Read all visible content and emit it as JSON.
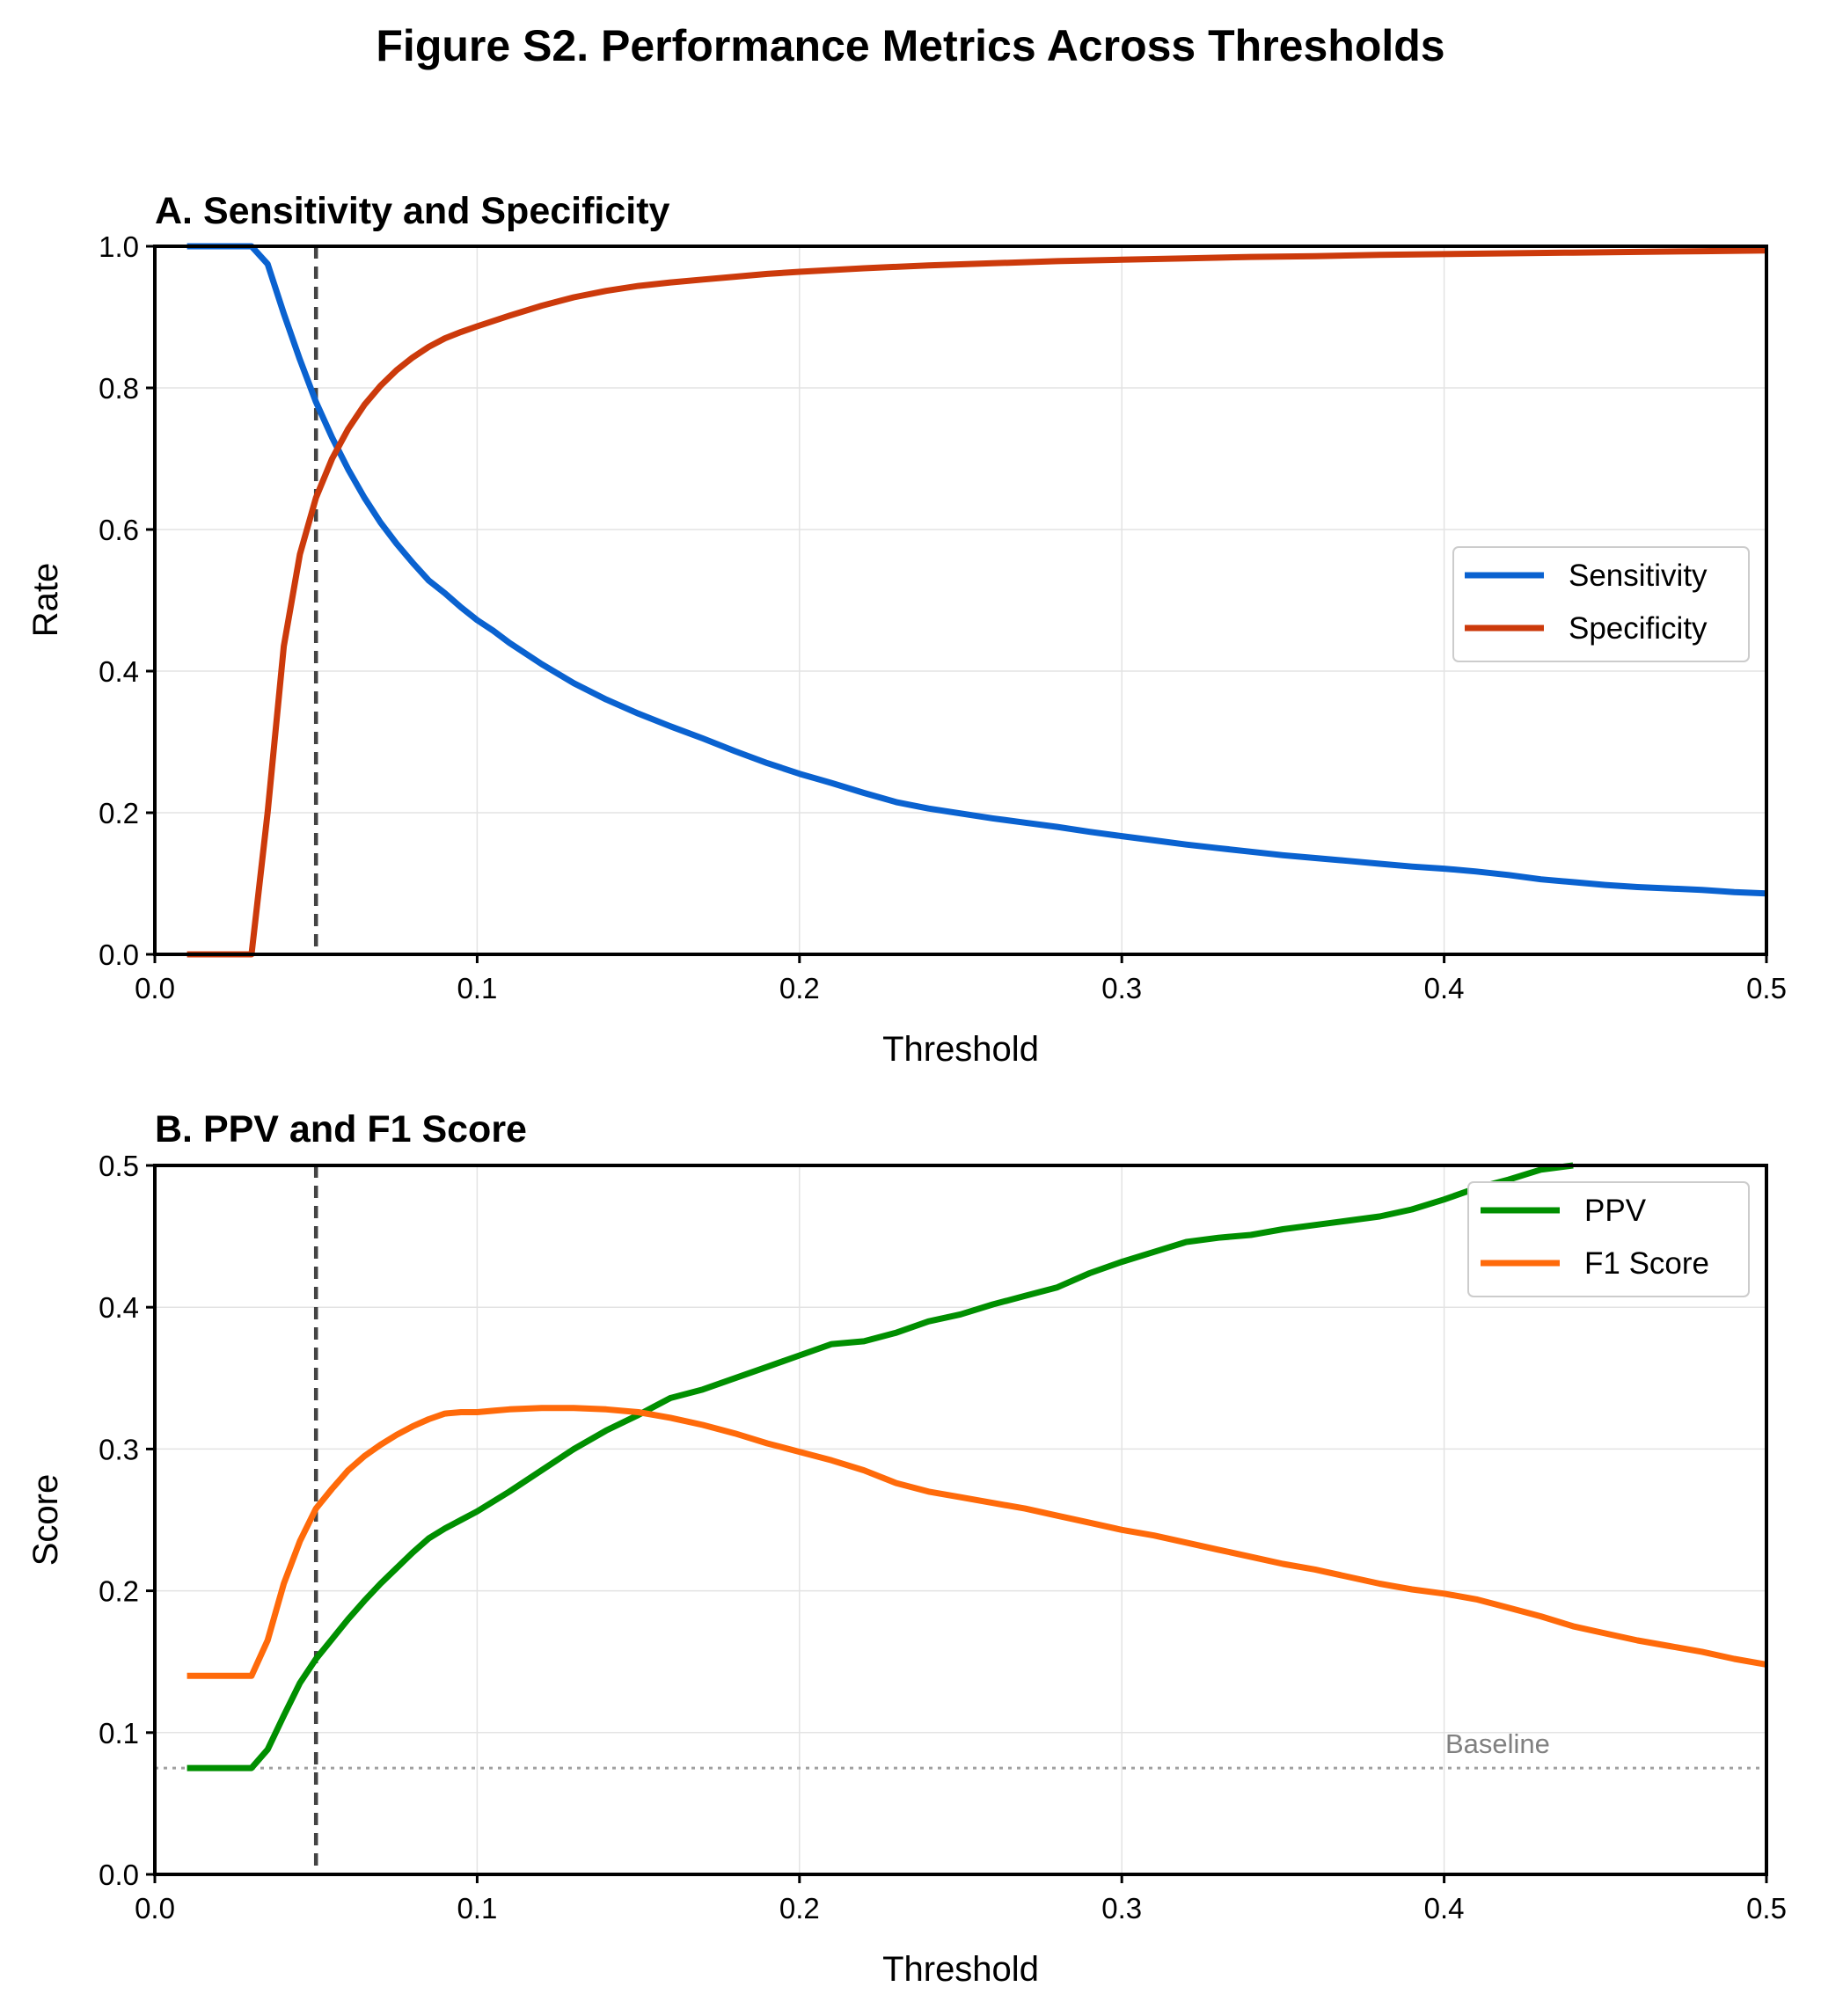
{
  "figure": {
    "title": "Figure S2. Performance Metrics Across Thresholds"
  },
  "chart_data": [
    {
      "type": "line",
      "title": "A. Sensitivity and Specificity",
      "xlabel": "Threshold",
      "ylabel": "Rate",
      "xlim": [
        0.0,
        0.5
      ],
      "ylim": [
        0.0,
        1.0
      ],
      "xticks": [
        0.0,
        0.1,
        0.2,
        0.3,
        0.4,
        0.5
      ],
      "yticks": [
        0.0,
        0.2,
        0.4,
        0.6,
        0.8,
        1.0
      ],
      "grid": true,
      "legend_position": "center-right",
      "vline": {
        "x": 0.05,
        "style": "dashed",
        "color": "#444444"
      },
      "series": [
        {
          "name": "Sensitivity",
          "color": "#0a62d0",
          "x": [
            0.01,
            0.02,
            0.03,
            0.035,
            0.04,
            0.045,
            0.05,
            0.055,
            0.06,
            0.065,
            0.07,
            0.075,
            0.08,
            0.085,
            0.09,
            0.095,
            0.1,
            0.105,
            0.11,
            0.12,
            0.13,
            0.14,
            0.15,
            0.16,
            0.17,
            0.18,
            0.19,
            0.2,
            0.21,
            0.22,
            0.23,
            0.24,
            0.25,
            0.26,
            0.27,
            0.28,
            0.29,
            0.3,
            0.31,
            0.32,
            0.33,
            0.34,
            0.35,
            0.36,
            0.37,
            0.38,
            0.39,
            0.4,
            0.41,
            0.42,
            0.43,
            0.44,
            0.45,
            0.46,
            0.47,
            0.48,
            0.49,
            0.5
          ],
          "y": [
            1.0,
            1.0,
            1.0,
            0.975,
            0.905,
            0.84,
            0.78,
            0.73,
            0.685,
            0.645,
            0.61,
            0.58,
            0.553,
            0.528,
            0.51,
            0.49,
            0.472,
            0.457,
            0.44,
            0.41,
            0.383,
            0.36,
            0.34,
            0.322,
            0.305,
            0.287,
            0.27,
            0.255,
            0.242,
            0.228,
            0.215,
            0.206,
            0.199,
            0.192,
            0.186,
            0.18,
            0.173,
            0.167,
            0.161,
            0.155,
            0.15,
            0.145,
            0.14,
            0.136,
            0.132,
            0.128,
            0.124,
            0.121,
            0.117,
            0.112,
            0.106,
            0.102,
            0.098,
            0.095,
            0.093,
            0.091,
            0.088,
            0.086
          ]
        },
        {
          "name": "Specificity",
          "color": "#cc3a0b",
          "x": [
            0.01,
            0.02,
            0.03,
            0.035,
            0.04,
            0.045,
            0.05,
            0.055,
            0.06,
            0.065,
            0.07,
            0.075,
            0.08,
            0.085,
            0.09,
            0.095,
            0.1,
            0.11,
            0.12,
            0.13,
            0.14,
            0.15,
            0.16,
            0.17,
            0.18,
            0.19,
            0.2,
            0.22,
            0.24,
            0.26,
            0.28,
            0.3,
            0.32,
            0.34,
            0.36,
            0.38,
            0.4,
            0.42,
            0.44,
            0.46,
            0.48,
            0.5
          ],
          "y": [
            0.0,
            0.0,
            0.0,
            0.2,
            0.435,
            0.565,
            0.645,
            0.7,
            0.742,
            0.776,
            0.803,
            0.825,
            0.843,
            0.858,
            0.87,
            0.879,
            0.887,
            0.902,
            0.916,
            0.928,
            0.937,
            0.944,
            0.949,
            0.953,
            0.957,
            0.961,
            0.964,
            0.969,
            0.973,
            0.976,
            0.979,
            0.981,
            0.983,
            0.985,
            0.986,
            0.988,
            0.989,
            0.99,
            0.991,
            0.992,
            0.993,
            0.994
          ]
        }
      ]
    },
    {
      "type": "line",
      "title": "B. PPV and F1 Score",
      "xlabel": "Threshold",
      "ylabel": "Score",
      "xlim": [
        0.0,
        0.5
      ],
      "ylim": [
        0.0,
        0.5
      ],
      "xticks": [
        0.0,
        0.1,
        0.2,
        0.3,
        0.4,
        0.5
      ],
      "yticks": [
        0.0,
        0.1,
        0.2,
        0.3,
        0.4,
        0.5
      ],
      "grid": true,
      "legend_position": "upper-right",
      "vline": {
        "x": 0.05,
        "style": "dashed",
        "color": "#444444"
      },
      "baseline": {
        "y": 0.075,
        "label": "Baseline",
        "style": "dotted",
        "color": "#a0a0a0"
      },
      "series": [
        {
          "name": "PPV",
          "color": "#008f00",
          "x": [
            0.01,
            0.02,
            0.03,
            0.035,
            0.04,
            0.045,
            0.05,
            0.055,
            0.06,
            0.065,
            0.07,
            0.075,
            0.08,
            0.085,
            0.09,
            0.095,
            0.1,
            0.11,
            0.12,
            0.13,
            0.14,
            0.15,
            0.155,
            0.16,
            0.17,
            0.18,
            0.19,
            0.2,
            0.21,
            0.22,
            0.23,
            0.24,
            0.25,
            0.26,
            0.27,
            0.28,
            0.29,
            0.3,
            0.31,
            0.32,
            0.33,
            0.34,
            0.35,
            0.36,
            0.37,
            0.38,
            0.39,
            0.4,
            0.41,
            0.42,
            0.43,
            0.44
          ],
          "y": [
            0.075,
            0.075,
            0.075,
            0.088,
            0.112,
            0.135,
            0.152,
            0.166,
            0.18,
            0.193,
            0.205,
            0.216,
            0.227,
            0.237,
            0.244,
            0.25,
            0.256,
            0.27,
            0.285,
            0.3,
            0.313,
            0.324,
            0.33,
            0.336,
            0.342,
            0.35,
            0.358,
            0.366,
            0.374,
            0.376,
            0.382,
            0.39,
            0.395,
            0.402,
            0.408,
            0.414,
            0.424,
            0.432,
            0.439,
            0.446,
            0.449,
            0.451,
            0.455,
            0.458,
            0.461,
            0.464,
            0.469,
            0.476,
            0.484,
            0.49,
            0.497,
            0.5
          ]
        },
        {
          "name": "F1 Score",
          "color": "#ff6a0a",
          "x": [
            0.01,
            0.02,
            0.03,
            0.035,
            0.04,
            0.045,
            0.05,
            0.055,
            0.06,
            0.065,
            0.07,
            0.075,
            0.08,
            0.085,
            0.09,
            0.095,
            0.1,
            0.105,
            0.11,
            0.12,
            0.13,
            0.14,
            0.15,
            0.16,
            0.17,
            0.18,
            0.19,
            0.2,
            0.21,
            0.22,
            0.23,
            0.24,
            0.25,
            0.26,
            0.27,
            0.28,
            0.29,
            0.3,
            0.31,
            0.32,
            0.33,
            0.34,
            0.35,
            0.36,
            0.37,
            0.38,
            0.39,
            0.4,
            0.41,
            0.42,
            0.43,
            0.44,
            0.45,
            0.46,
            0.47,
            0.48,
            0.49,
            0.5
          ],
          "y": [
            0.14,
            0.14,
            0.14,
            0.165,
            0.205,
            0.235,
            0.258,
            0.272,
            0.285,
            0.295,
            0.303,
            0.31,
            0.316,
            0.321,
            0.325,
            0.326,
            0.326,
            0.327,
            0.328,
            0.329,
            0.329,
            0.328,
            0.326,
            0.322,
            0.317,
            0.311,
            0.304,
            0.298,
            0.292,
            0.285,
            0.276,
            0.27,
            0.266,
            0.262,
            0.258,
            0.253,
            0.248,
            0.243,
            0.239,
            0.234,
            0.229,
            0.224,
            0.219,
            0.215,
            0.21,
            0.205,
            0.201,
            0.198,
            0.194,
            0.188,
            0.182,
            0.175,
            0.17,
            0.165,
            0.161,
            0.157,
            0.152,
            0.148
          ]
        }
      ]
    }
  ]
}
